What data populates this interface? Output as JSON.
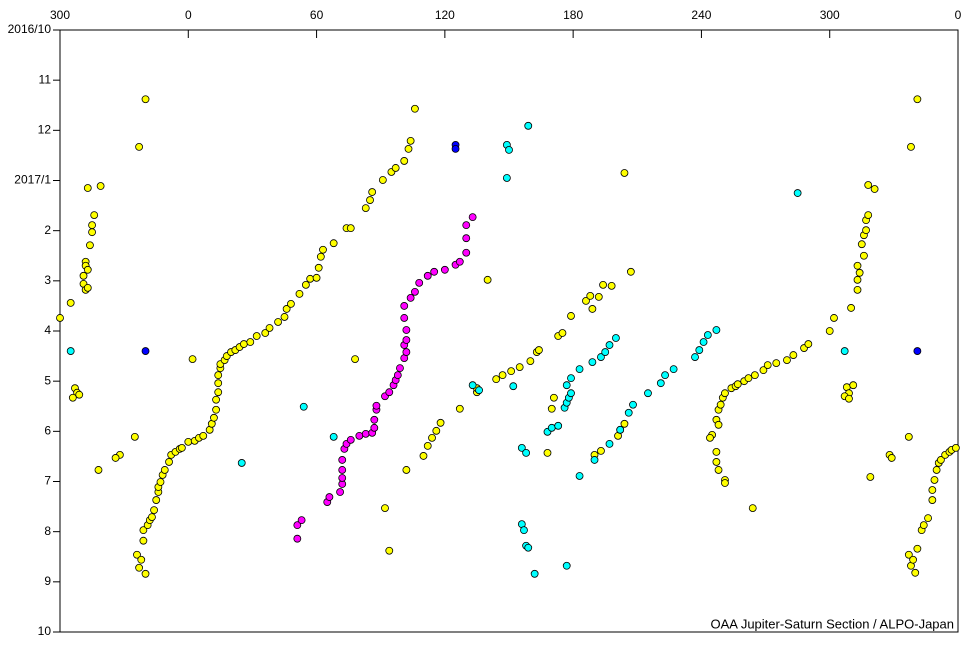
{
  "chart_data": {
    "type": "scatter",
    "note_text": "OAA Jupiter-Saturn Section / ALPO-Japan",
    "xlim": [
      -60,
      360
    ],
    "xticks": [
      {
        "value": -60,
        "label": "300"
      },
      0,
      60,
      120,
      180,
      240,
      300,
      {
        "value": 360,
        "label": "0"
      }
    ],
    "ylim": [
      0,
      12
    ],
    "yticks": [
      {
        "value": 0,
        "label": "2016/10"
      },
      {
        "value": 1,
        "label": "11"
      },
      {
        "value": 2,
        "label": "12"
      },
      {
        "value": 3,
        "label": "2017/1"
      },
      {
        "value": 4,
        "label": "2"
      },
      {
        "value": 5,
        "label": "3"
      },
      {
        "value": 6,
        "label": "4"
      },
      {
        "value": 7,
        "label": "5"
      },
      {
        "value": 8,
        "label": "6"
      },
      {
        "value": 9,
        "label": "7"
      },
      {
        "value": 10,
        "label": "8"
      },
      {
        "value": 11,
        "label": "9"
      },
      {
        "value": 12,
        "label": "10"
      }
    ],
    "y_inverted": true,
    "series": [
      {
        "color": "#ffff00",
        "x": [
          -60,
          -55,
          -53,
          -52,
          -54,
          -51,
          -42,
          -47,
          -41,
          -44,
          -45,
          -45,
          -46,
          -48,
          -48,
          -47,
          -49,
          -49,
          -48,
          -47,
          -20,
          -23,
          -25,
          -32,
          -34,
          -24,
          -23,
          -20,
          -22,
          -21,
          -21,
          -19,
          -18,
          -17,
          -16,
          -15,
          -14,
          -14,
          -13,
          -12,
          -11,
          -9,
          -8,
          -6,
          -4,
          -3,
          0,
          3,
          5,
          7,
          10,
          11,
          12,
          13,
          13,
          14,
          14,
          14,
          15,
          15,
          17,
          18,
          20,
          22,
          24,
          26,
          29,
          32,
          36,
          38,
          42,
          45,
          46,
          48,
          52,
          55,
          57,
          60,
          61,
          62,
          63,
          68,
          74,
          76,
          83,
          85,
          86,
          91,
          95,
          97,
          101,
          103,
          104,
          106,
          2,
          78,
          92,
          94,
          102,
          110,
          112,
          114,
          116,
          118,
          127,
          135,
          135,
          140,
          144,
          147,
          151,
          155,
          160,
          163,
          164,
          170,
          168,
          171,
          173,
          175,
          179,
          186,
          188,
          189,
          192,
          194,
          198,
          207,
          204,
          190,
          193,
          201,
          202,
          204,
          248,
          249,
          250,
          251,
          254,
          256,
          257,
          260,
          262,
          265,
          269,
          271,
          275,
          280,
          283,
          288,
          290,
          300,
          302,
          245,
          244,
          247,
          247,
          248,
          251,
          251,
          247,
          248,
          264,
          308,
          309,
          311,
          307,
          309,
          319,
          310,
          313,
          313,
          314,
          313,
          316,
          315,
          316,
          317,
          317,
          318,
          321,
          318,
          341,
          338,
          337,
          328,
          329,
          337,
          338,
          340,
          339,
          341,
          343,
          344,
          346,
          348,
          348,
          349,
          350,
          351,
          352,
          354,
          356,
          357,
          359
        ],
        "values": [
          5.74,
          5.44,
          7.14,
          7.23,
          7.33,
          7.27,
          8.77,
          3.15,
          3.11,
          3.69,
          3.89,
          4.03,
          4.29,
          4.62,
          4.7,
          4.78,
          4.9,
          5.06,
          5.18,
          5.14,
          1.38,
          2.33,
          8.11,
          8.47,
          8.53,
          10.46,
          10.72,
          10.84,
          10.56,
          10.18,
          9.97,
          9.87,
          9.77,
          9.71,
          9.57,
          9.37,
          9.21,
          9.11,
          9.01,
          8.87,
          8.77,
          8.61,
          8.47,
          8.41,
          8.35,
          8.33,
          8.21,
          8.19,
          8.13,
          8.09,
          7.97,
          7.85,
          7.73,
          7.57,
          7.37,
          7.22,
          7.04,
          6.88,
          6.74,
          6.66,
          6.58,
          6.5,
          6.42,
          6.38,
          6.32,
          6.26,
          6.22,
          6.1,
          6.04,
          5.94,
          5.82,
          5.72,
          5.56,
          5.46,
          5.26,
          5.08,
          4.96,
          4.94,
          4.74,
          4.52,
          4.38,
          4.25,
          3.95,
          3.95,
          3.55,
          3.39,
          3.23,
          2.99,
          2.83,
          2.75,
          2.61,
          2.37,
          2.21,
          1.57,
          6.56,
          6.56,
          9.53,
          10.38,
          8.77,
          8.49,
          8.29,
          8.13,
          7.99,
          7.83,
          7.55,
          7.22,
          7.14,
          4.98,
          6.96,
          6.88,
          6.8,
          6.72,
          6.6,
          6.42,
          6.38,
          7.55,
          8.43,
          7.33,
          6.1,
          6.04,
          5.7,
          5.4,
          5.3,
          5.56,
          5.32,
          5.08,
          5.1,
          4.82,
          2.85,
          8.47,
          8.39,
          8.09,
          7.97,
          7.85,
          7.57,
          7.47,
          7.33,
          7.24,
          7.14,
          7.1,
          7.06,
          7.0,
          6.94,
          6.88,
          6.78,
          6.68,
          6.64,
          6.58,
          6.48,
          6.34,
          6.26,
          6.0,
          5.74,
          8.07,
          8.13,
          8.41,
          8.61,
          8.77,
          8.97,
          9.03,
          7.77,
          7.87,
          9.53,
          7.12,
          7.24,
          7.08,
          7.3,
          7.35,
          8.91,
          5.54,
          5.18,
          4.98,
          4.84,
          4.7,
          4.5,
          4.27,
          4.09,
          3.99,
          3.79,
          3.69,
          3.17,
          3.09,
          1.38,
          2.33,
          8.11,
          8.47,
          8.53,
          10.46,
          10.68,
          10.82,
          10.56,
          10.34,
          9.97,
          9.87,
          9.73,
          9.37,
          9.17,
          8.97,
          8.77,
          8.63,
          8.57,
          8.47,
          8.41,
          8.37,
          8.33
        ]
      },
      {
        "color": "#ff00ff",
        "x": [
          51,
          51,
          53,
          65,
          66,
          71,
          72,
          72,
          72,
          72,
          73,
          74,
          76,
          80,
          83,
          86,
          87,
          87,
          88,
          88,
          92,
          94,
          96,
          97,
          98,
          99,
          101,
          102,
          101,
          102,
          102,
          101,
          101,
          104,
          106,
          108,
          112,
          115,
          120,
          125,
          127,
          130,
          130,
          130,
          133
        ],
        "values": [
          10.14,
          9.87,
          9.77,
          9.41,
          9.31,
          9.21,
          9.05,
          8.93,
          8.77,
          8.57,
          8.35,
          8.25,
          8.17,
          8.09,
          8.05,
          8.03,
          7.93,
          7.77,
          7.57,
          7.49,
          7.3,
          7.22,
          7.08,
          6.98,
          6.88,
          6.74,
          6.54,
          6.42,
          6.28,
          6.18,
          5.98,
          5.74,
          5.5,
          5.34,
          5.22,
          5.04,
          4.9,
          4.82,
          4.78,
          4.68,
          4.62,
          4.44,
          4.15,
          3.89,
          3.73
        ]
      },
      {
        "color": "#00ffff",
        "x": [
          -55,
          54,
          25,
          68,
          149,
          150,
          159,
          149,
          133,
          136,
          152,
          156,
          158,
          156,
          157,
          158,
          159,
          162,
          177,
          168,
          170,
          173,
          176,
          177,
          178,
          179,
          177,
          179,
          183,
          189,
          193,
          195,
          197,
          200,
          197,
          190,
          183,
          202,
          206,
          208,
          215,
          221,
          223,
          227,
          237,
          239,
          241,
          243,
          247,
          285,
          307
        ],
        "values": [
          6.4,
          7.51,
          8.63,
          8.11,
          2.29,
          2.39,
          1.91,
          2.95,
          7.08,
          7.18,
          7.1,
          8.33,
          8.43,
          9.85,
          9.97,
          10.28,
          10.32,
          10.84,
          10.68,
          8.01,
          7.93,
          7.89,
          7.53,
          7.43,
          7.33,
          7.24,
          7.08,
          6.94,
          6.76,
          6.62,
          6.52,
          6.42,
          6.28,
          6.14,
          8.25,
          8.57,
          8.89,
          7.97,
          7.63,
          7.47,
          7.24,
          7.04,
          6.88,
          6.76,
          6.52,
          6.38,
          6.22,
          6.08,
          5.98,
          3.25,
          6.4
        ]
      },
      {
        "color": "#0000ff",
        "x": [
          -20,
          125,
          125,
          341
        ],
        "values": [
          6.4,
          2.29,
          2.37,
          6.4
        ]
      }
    ]
  }
}
